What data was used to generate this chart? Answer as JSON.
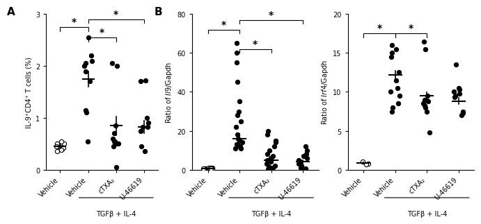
{
  "panel_A": {
    "title": "A",
    "ylabel": "IL-9⁺CD4⁺ T cells (%)",
    "xlabel_groups": [
      "Vehicle",
      "Vehicle",
      "cTXA₂",
      "U-46619"
    ],
    "xlabel_bottom": "TGFβ + IL-4",
    "ylim": [
      0,
      3
    ],
    "yticks": [
      0,
      1,
      2,
      3
    ],
    "data": [
      [
        0.45,
        0.5,
        0.4,
        0.55,
        0.35,
        0.5,
        0.45,
        0.42,
        0.38
      ],
      [
        1.7,
        2.0,
        2.1,
        2.2,
        2.05,
        1.9,
        1.15,
        1.1,
        2.55,
        0.55
      ],
      [
        0.55,
        0.5,
        0.6,
        0.7,
        0.55,
        0.85,
        0.5,
        0.45,
        0.05,
        2.0,
        2.05
      ],
      [
        0.35,
        0.45,
        0.75,
        0.82,
        0.9,
        1.0,
        0.82,
        1.7,
        1.72
      ]
    ],
    "means": [
      0.45,
      1.75,
      0.85,
      0.82
    ],
    "sems": [
      0.04,
      0.15,
      0.18,
      0.12
    ],
    "open_circles": [
      true,
      false,
      false,
      false
    ],
    "sig_brackets": [
      [
        0,
        1,
        2.75,
        "*"
      ],
      [
        1,
        2,
        2.55,
        "*"
      ],
      [
        1,
        3,
        2.9,
        "*"
      ]
    ]
  },
  "panel_B1": {
    "title": "B",
    "ylabel": "Ratio of <i>Il9</i>/Gapdh",
    "xlabel_groups": [
      "Vehicle",
      "Vehicle",
      "cTXA₂",
      "U-46619"
    ],
    "xlabel_bottom": "TGFβ + IL-4",
    "ylim": [
      0,
      80
    ],
    "yticks": [
      0,
      20,
      40,
      60,
      80
    ],
    "data": [
      [
        0.5,
        0.8,
        1.0,
        0.6,
        0.7,
        0.5,
        0.4,
        0.6,
        0.8,
        1.0,
        0.7,
        0.5,
        0.6
      ],
      [
        65,
        60,
        55,
        45,
        35,
        30,
        28,
        25,
        22,
        18,
        16,
        15,
        14,
        13,
        12,
        12,
        11,
        11
      ],
      [
        20,
        18,
        15,
        14,
        12,
        10,
        8,
        7,
        6,
        5,
        4,
        3,
        2,
        1.5,
        1.0,
        0.8,
        0.5,
        0.4,
        0.3,
        15
      ],
      [
        12,
        10,
        8,
        7,
        6,
        5,
        4,
        3,
        2,
        1.5,
        1.0,
        0.5,
        0.3
      ]
    ],
    "means": [
      0.7,
      16,
      5,
      4
    ],
    "sems": [
      0.05,
      2.5,
      1.5,
      1.0
    ],
    "open_circles": [
      true,
      false,
      false,
      false
    ],
    "sig_brackets": [
      [
        0,
        1,
        72,
        "*"
      ],
      [
        1,
        2,
        62,
        "*"
      ],
      [
        1,
        3,
        77,
        "*"
      ]
    ]
  },
  "panel_B2": {
    "ylabel": "Ratio of <i>Irf4</i>/Gapdh",
    "xlabel_groups": [
      "Vehicle",
      "Vehicle",
      "cTXA₂",
      "U-46619"
    ],
    "xlabel_bottom": "TGFβ + IL-4",
    "ylim": [
      0,
      20
    ],
    "yticks": [
      0,
      5,
      10,
      15,
      20
    ],
    "data": [
      [
        1.0,
        0.8,
        0.7
      ],
      [
        15.5,
        16.0,
        15.0,
        14.5,
        12.5,
        11.5,
        10.5,
        10.0,
        9.5,
        8.5,
        8.0,
        7.5
      ],
      [
        16.5,
        15.5,
        9.5,
        9.0,
        9.0,
        8.8,
        8.5,
        8.3,
        8.0,
        7.5,
        4.8
      ],
      [
        13.5,
        10.5,
        10.3,
        10.0,
        9.8,
        9.5,
        9.3,
        7.5,
        7.3,
        7.0
      ]
    ],
    "means": [
      0.85,
      12.2,
      9.5,
      8.8
    ],
    "sems": [
      0.08,
      0.55,
      0.45,
      0.4
    ],
    "open_circles": [
      true,
      false,
      false,
      false
    ],
    "sig_brackets": [
      [
        0,
        1,
        17.5,
        "*"
      ],
      [
        1,
        2,
        17.5,
        "*"
      ]
    ]
  },
  "dot_size": 20,
  "color_filled": "#000000",
  "color_open": "#ffffff",
  "error_color": "#000000",
  "bracket_color": "#000000"
}
